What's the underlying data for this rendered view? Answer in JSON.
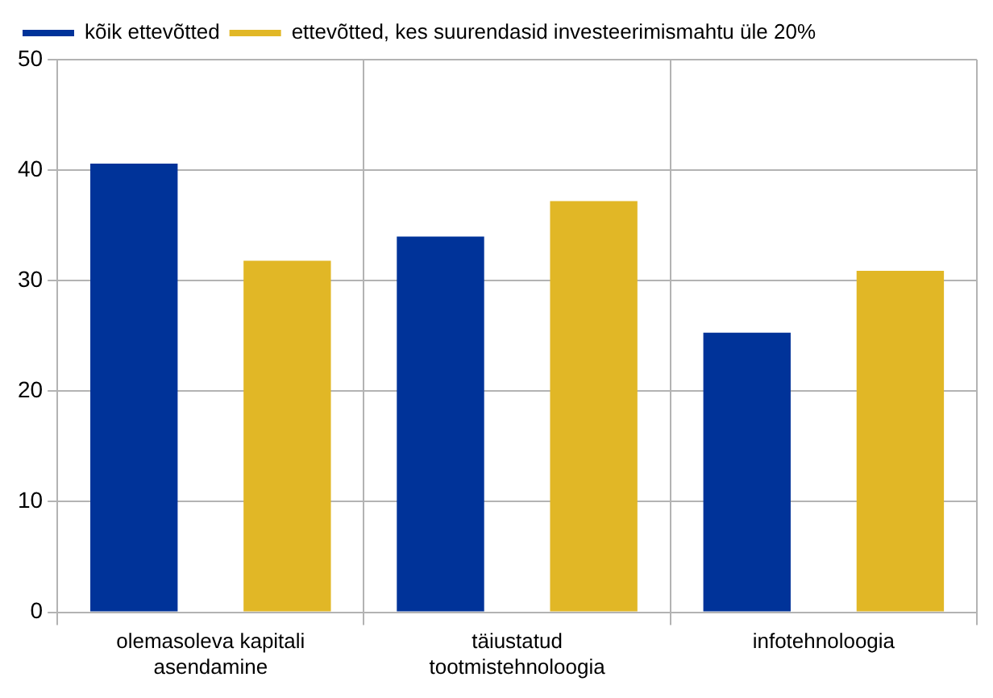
{
  "chart_data": {
    "type": "bar",
    "categories": [
      [
        "olemasoleva kapitali",
        "asendamine"
      ],
      [
        "täiustatud",
        "tootmistehnoloogia"
      ],
      "infotehnoloogia"
    ],
    "series": [
      {
        "name": "kõik ettevõtted",
        "color": "#003399",
        "values": [
          40.6,
          34.0,
          25.3
        ]
      },
      {
        "name": "ettevõtted, kes suurendasid investeerimismahtu üle 20%",
        "color": "#e1b726",
        "values": [
          31.8,
          37.2,
          30.9
        ]
      }
    ],
    "ylim": [
      0,
      50
    ],
    "yticks": [
      0,
      10,
      20,
      30,
      40,
      50
    ],
    "grid": true,
    "legend": "top left"
  }
}
